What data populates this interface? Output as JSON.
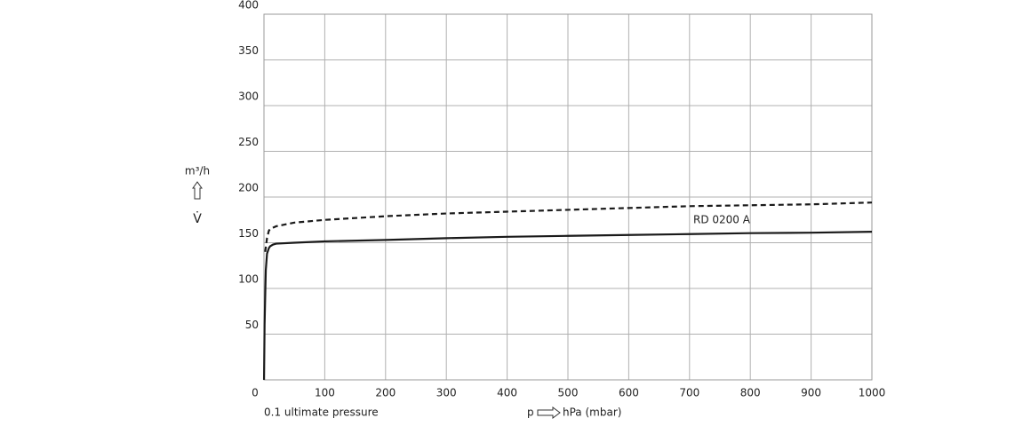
{
  "chart_data": {
    "type": "line",
    "y_unit": "m³/h",
    "y_symbol": "V̇",
    "x_note": "0.1 ultimate pressure",
    "x_symbol": "p",
    "x_unit": "hPa (mbar)",
    "annotation": "RD 0200 A",
    "xlim": [
      0,
      1000
    ],
    "xticks": [
      0,
      100,
      200,
      300,
      400,
      500,
      600,
      700,
      800,
      900,
      1000
    ],
    "ylim": [
      0,
      400
    ],
    "yticks": [
      50,
      100,
      150,
      200,
      250,
      300,
      350,
      400
    ],
    "grid": true,
    "series": [
      {
        "color": "#1a1a1a",
        "dashed": false,
        "x": [
          0.1,
          1,
          3,
          5,
          8,
          10,
          15,
          20,
          50,
          100,
          200,
          300,
          400,
          500,
          600,
          700,
          800,
          900,
          1000
        ],
        "values": [
          0,
          60,
          120,
          138,
          144,
          146,
          148,
          149,
          150,
          151.5,
          153,
          155,
          156.5,
          157.5,
          158.5,
          159.5,
          160.5,
          161,
          162
        ]
      },
      {
        "color": "#1a1a1a",
        "dashed": true,
        "x": [
          2,
          5,
          8,
          10,
          20,
          50,
          100,
          200,
          300,
          400,
          500,
          600,
          700,
          800,
          900,
          1000
        ],
        "values": [
          140,
          155,
          163,
          165,
          168,
          172,
          175,
          179,
          182,
          184,
          186,
          188,
          190,
          191,
          192,
          194
        ]
      }
    ]
  }
}
